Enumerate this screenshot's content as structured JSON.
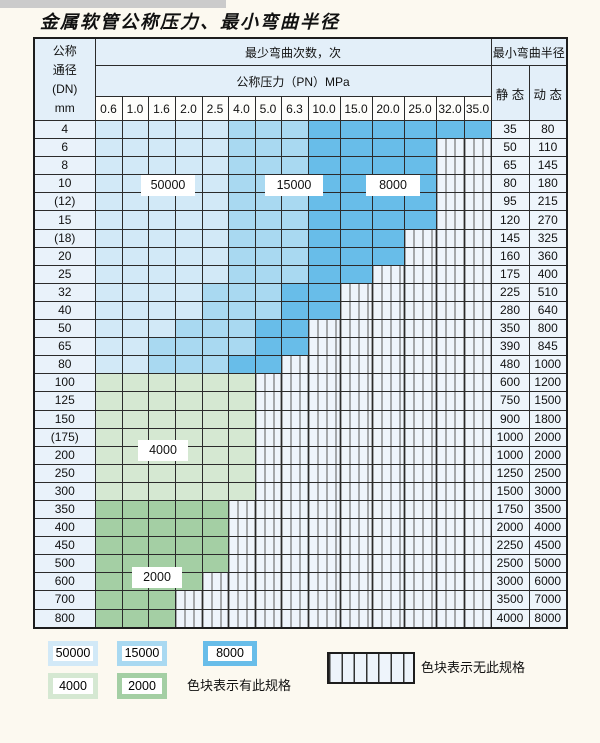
{
  "title": "金属软管公称压力、最小弯曲半径",
  "table": {
    "dn_header_lines": [
      "公称",
      "通径",
      "(DN)",
      "mm"
    ],
    "cycles_header": "最少弯曲次数，次",
    "pressure_header": "公称压力（PN）MPa",
    "radius_header": "最小弯曲半径",
    "static_label": "静 态",
    "dynamic_label": "动 态",
    "pressure_columns": [
      "0.6",
      "1.0",
      "1.6",
      "2.0",
      "2.5",
      "4.0",
      "5.0",
      "6.3",
      "10.0",
      "15.0",
      "20.0",
      "25.0",
      "32.0",
      "35.0"
    ],
    "rows": [
      {
        "dn": "4",
        "cells": [
          "s1",
          "s1",
          "s1",
          "s1",
          "s1",
          "s2",
          "s2",
          "s2",
          "s3",
          "s3",
          "s3",
          "s3",
          "s3",
          "s3"
        ],
        "static": "35",
        "dynamic": "80"
      },
      {
        "dn": "6",
        "cells": [
          "s1",
          "s1",
          "s1",
          "s1",
          "s1",
          "s2",
          "s2",
          "s2",
          "s3",
          "s3",
          "s3",
          "s3",
          "x",
          "x"
        ],
        "static": "50",
        "dynamic": "110"
      },
      {
        "dn": "8",
        "cells": [
          "s1",
          "s1",
          "s1",
          "s1",
          "s1",
          "s2",
          "s2",
          "s2",
          "s3",
          "s3",
          "s3",
          "s3",
          "x",
          "x"
        ],
        "static": "65",
        "dynamic": "145"
      },
      {
        "dn": "10",
        "cells": [
          "s1",
          "s1",
          "s1",
          "s1",
          "s1",
          "s2",
          "s2",
          "s2",
          "s3",
          "s3",
          "s3",
          "s3",
          "x",
          "x"
        ],
        "static": "80",
        "dynamic": "180"
      },
      {
        "dn": "(12)",
        "cells": [
          "s1",
          "s1",
          "s1",
          "s1",
          "s1",
          "s2",
          "s2",
          "s2",
          "s3",
          "s3",
          "s3",
          "s3",
          "x",
          "x"
        ],
        "static": "95",
        "dynamic": "215"
      },
      {
        "dn": "15",
        "cells": [
          "s1",
          "s1",
          "s1",
          "s1",
          "s1",
          "s2",
          "s2",
          "s2",
          "s3",
          "s3",
          "s3",
          "s3",
          "x",
          "x"
        ],
        "static": "120",
        "dynamic": "270"
      },
      {
        "dn": "(18)",
        "cells": [
          "s1",
          "s1",
          "s1",
          "s1",
          "s1",
          "s2",
          "s2",
          "s2",
          "s3",
          "s3",
          "s3",
          "x",
          "x",
          "x"
        ],
        "static": "145",
        "dynamic": "325"
      },
      {
        "dn": "20",
        "cells": [
          "s1",
          "s1",
          "s1",
          "s1",
          "s1",
          "s2",
          "s2",
          "s2",
          "s3",
          "s3",
          "s3",
          "x",
          "x",
          "x"
        ],
        "static": "160",
        "dynamic": "360"
      },
      {
        "dn": "25",
        "cells": [
          "s1",
          "s1",
          "s1",
          "s1",
          "s1",
          "s2",
          "s2",
          "s2",
          "s3",
          "s3",
          "x",
          "x",
          "x",
          "x"
        ],
        "static": "175",
        "dynamic": "400"
      },
      {
        "dn": "32",
        "cells": [
          "s1",
          "s1",
          "s1",
          "s1",
          "s2",
          "s2",
          "s2",
          "s3",
          "s3",
          "x",
          "x",
          "x",
          "x",
          "x"
        ],
        "static": "225",
        "dynamic": "510"
      },
      {
        "dn": "40",
        "cells": [
          "s1",
          "s1",
          "s1",
          "s1",
          "s2",
          "s2",
          "s2",
          "s3",
          "s3",
          "x",
          "x",
          "x",
          "x",
          "x"
        ],
        "static": "280",
        "dynamic": "640"
      },
      {
        "dn": "50",
        "cells": [
          "s1",
          "s1",
          "s1",
          "s2",
          "s2",
          "s2",
          "s3",
          "s3",
          "x",
          "x",
          "x",
          "x",
          "x",
          "x"
        ],
        "static": "350",
        "dynamic": "800"
      },
      {
        "dn": "65",
        "cells": [
          "s1",
          "s1",
          "s2",
          "s2",
          "s2",
          "s2",
          "s3",
          "s3",
          "x",
          "x",
          "x",
          "x",
          "x",
          "x"
        ],
        "static": "390",
        "dynamic": "845"
      },
      {
        "dn": "80",
        "cells": [
          "s1",
          "s1",
          "s2",
          "s2",
          "s2",
          "s3",
          "s3",
          "x",
          "x",
          "x",
          "x",
          "x",
          "x",
          "x"
        ],
        "static": "480",
        "dynamic": "1000"
      },
      {
        "dn": "100",
        "cells": [
          "g1",
          "g1",
          "g1",
          "g1",
          "g1",
          "g1",
          "x",
          "x",
          "x",
          "x",
          "x",
          "x",
          "x",
          "x"
        ],
        "static": "600",
        "dynamic": "1200"
      },
      {
        "dn": "125",
        "cells": [
          "g1",
          "g1",
          "g1",
          "g1",
          "g1",
          "g1",
          "x",
          "x",
          "x",
          "x",
          "x",
          "x",
          "x",
          "x"
        ],
        "static": "750",
        "dynamic": "1500"
      },
      {
        "dn": "150",
        "cells": [
          "g1",
          "g1",
          "g1",
          "g1",
          "g1",
          "g1",
          "x",
          "x",
          "x",
          "x",
          "x",
          "x",
          "x",
          "x"
        ],
        "static": "900",
        "dynamic": "1800"
      },
      {
        "dn": "(175)",
        "cells": [
          "g1",
          "g1",
          "g1",
          "g1",
          "g1",
          "g1",
          "x",
          "x",
          "x",
          "x",
          "x",
          "x",
          "x",
          "x"
        ],
        "static": "1000",
        "dynamic": "2000"
      },
      {
        "dn": "200",
        "cells": [
          "g1",
          "g1",
          "g1",
          "g1",
          "g1",
          "g1",
          "x",
          "x",
          "x",
          "x",
          "x",
          "x",
          "x",
          "x"
        ],
        "static": "1000",
        "dynamic": "2000"
      },
      {
        "dn": "250",
        "cells": [
          "g1",
          "g1",
          "g1",
          "g1",
          "g1",
          "g1",
          "x",
          "x",
          "x",
          "x",
          "x",
          "x",
          "x",
          "x"
        ],
        "static": "1250",
        "dynamic": "2500"
      },
      {
        "dn": "300",
        "cells": [
          "g1",
          "g1",
          "g1",
          "g1",
          "g1",
          "g1",
          "x",
          "x",
          "x",
          "x",
          "x",
          "x",
          "x",
          "x"
        ],
        "static": "1500",
        "dynamic": "3000"
      },
      {
        "dn": "350",
        "cells": [
          "g2",
          "g2",
          "g2",
          "g2",
          "g2",
          "x",
          "x",
          "x",
          "x",
          "x",
          "x",
          "x",
          "x",
          "x"
        ],
        "static": "1750",
        "dynamic": "3500"
      },
      {
        "dn": "400",
        "cells": [
          "g2",
          "g2",
          "g2",
          "g2",
          "g2",
          "x",
          "x",
          "x",
          "x",
          "x",
          "x",
          "x",
          "x",
          "x"
        ],
        "static": "2000",
        "dynamic": "4000"
      },
      {
        "dn": "450",
        "cells": [
          "g2",
          "g2",
          "g2",
          "g2",
          "g2",
          "x",
          "x",
          "x",
          "x",
          "x",
          "x",
          "x",
          "x",
          "x"
        ],
        "static": "2250",
        "dynamic": "4500"
      },
      {
        "dn": "500",
        "cells": [
          "g2",
          "g2",
          "g2",
          "g2",
          "g2",
          "x",
          "x",
          "x",
          "x",
          "x",
          "x",
          "x",
          "x",
          "x"
        ],
        "static": "2500",
        "dynamic": "5000"
      },
      {
        "dn": "600",
        "cells": [
          "g2",
          "g2",
          "g2",
          "g2",
          "x",
          "x",
          "x",
          "x",
          "x",
          "x",
          "x",
          "x",
          "x",
          "x"
        ],
        "static": "3000",
        "dynamic": "6000"
      },
      {
        "dn": "700",
        "cells": [
          "g2",
          "g2",
          "g2",
          "x",
          "x",
          "x",
          "x",
          "x",
          "x",
          "x",
          "x",
          "x",
          "x",
          "x"
        ],
        "static": "3500",
        "dynamic": "7000"
      },
      {
        "dn": "800",
        "cells": [
          "g2",
          "g2",
          "g2",
          "x",
          "x",
          "x",
          "x",
          "x",
          "x",
          "x",
          "x",
          "x",
          "x",
          "x"
        ],
        "static": "4000",
        "dynamic": "8000"
      }
    ]
  },
  "overlays": [
    {
      "text": "50000"
    },
    {
      "text": "15000"
    },
    {
      "text": "8000"
    },
    {
      "text": "4000"
    },
    {
      "text": "2000"
    }
  ],
  "legend": {
    "items": [
      {
        "value": "50000",
        "shade": "s1"
      },
      {
        "value": "15000",
        "shade": "s2"
      },
      {
        "value": "8000",
        "shade": "s3"
      },
      {
        "value": "4000",
        "shade": "g1"
      },
      {
        "value": "2000",
        "shade": "g2"
      }
    ],
    "has_spec_text": "色块表示有此规格",
    "no_spec_text": "色块表示无此规格"
  },
  "colors": {
    "s1": "#d2e9f7",
    "s2": "#a9d9f1",
    "s3": "#68bde9",
    "g1": "#d5e8d2",
    "g2": "#a4cfa4",
    "hatch_bg": "#eef4fb",
    "hatch_line": "#5a5a5a",
    "header_bg": "#e3eff9",
    "dn_col_bg": "#e9f2fa",
    "value_col_bg": "#eef5fb",
    "page_bg": "#fcf9f0",
    "top_strip": "#cbcbcb"
  }
}
